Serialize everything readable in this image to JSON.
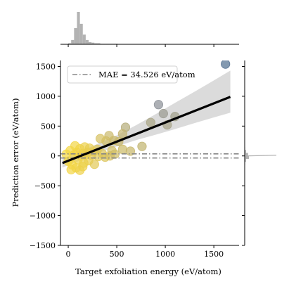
{
  "chart_data": {
    "type": "scatter",
    "title": "",
    "xlabel": "Target exfoliation energy (eV/atom)",
    "ylabel": "Prediction error (eV/atom)",
    "xlim": [
      -80,
      1760
    ],
    "ylim": [
      -1500,
      1600
    ],
    "x_ticks": [
      0,
      500,
      1000,
      1500
    ],
    "y_ticks": [
      -1500,
      -1000,
      -500,
      0,
      500,
      1000,
      1500
    ],
    "x_tick_labels": [
      "0",
      "500",
      "1000",
      "1500"
    ],
    "y_tick_labels": [
      "−1500",
      "−1000",
      "−500",
      "0",
      "500",
      "1000",
      "1500"
    ],
    "legend": {
      "label": "MAE = 34.526 eV/atom",
      "placement": "top-left"
    },
    "mae": 34.526,
    "regression": {
      "x": [
        -60,
        1670
      ],
      "y": [
        -120,
        990
      ],
      "ci_x": [
        -60,
        100,
        300,
        500,
        700,
        900,
        1100,
        1300,
        1500,
        1670
      ],
      "ci_upper": [
        -45,
        60,
        200,
        345,
        515,
        700,
        890,
        1075,
        1265,
        1430
      ],
      "ci_lower": [
        -195,
        -90,
        45,
        160,
        265,
        355,
        450,
        550,
        645,
        725
      ]
    },
    "points": [
      {
        "x": 1620,
        "y": 1540,
        "color": "#4f6d8e"
      },
      {
        "x": 930,
        "y": 860,
        "color": "#8a8e96"
      },
      {
        "x": 980,
        "y": 710,
        "color": "#9a9a90"
      },
      {
        "x": 1100,
        "y": 660,
        "color": "#a1a08a"
      },
      {
        "x": 1020,
        "y": 520,
        "color": "#a6a386"
      },
      {
        "x": 850,
        "y": 560,
        "color": "#aaa585"
      },
      {
        "x": 590,
        "y": 480,
        "color": "#b4ab78"
      },
      {
        "x": 420,
        "y": 340,
        "color": "#cbb96b"
      },
      {
        "x": 560,
        "y": 370,
        "color": "#c3b46f"
      },
      {
        "x": 390,
        "y": 250,
        "color": "#d0bd65"
      },
      {
        "x": 470,
        "y": 260,
        "color": "#ccbb68"
      },
      {
        "x": 520,
        "y": 240,
        "color": "#c7b76b"
      },
      {
        "x": 330,
        "y": 290,
        "color": "#d6c15f"
      },
      {
        "x": 300,
        "y": 110,
        "color": "#dec75a"
      },
      {
        "x": 450,
        "y": 90,
        "color": "#d2bf62"
      },
      {
        "x": 560,
        "y": 110,
        "color": "#cab965"
      },
      {
        "x": 760,
        "y": 160,
        "color": "#c1b36d"
      },
      {
        "x": 640,
        "y": 80,
        "color": "#c7b66a"
      },
      {
        "x": 130,
        "y": 0,
        "color": "#eed24a"
      },
      {
        "x": 150,
        "y": 40,
        "color": "#ecd04c"
      },
      {
        "x": 180,
        "y": 20,
        "color": "#ebcf4d"
      },
      {
        "x": 200,
        "y": 60,
        "color": "#e9ce4f"
      },
      {
        "x": 240,
        "y": 10,
        "color": "#e6cb52"
      },
      {
        "x": 260,
        "y": 70,
        "color": "#e4ca54"
      },
      {
        "x": 310,
        "y": -10,
        "color": "#e0c856"
      },
      {
        "x": 350,
        "y": 40,
        "color": "#ddc658"
      },
      {
        "x": 380,
        "y": -20,
        "color": "#dbc45a"
      },
      {
        "x": 100,
        "y": -60,
        "color": "#f0d347"
      },
      {
        "x": 90,
        "y": 60,
        "color": "#f1d446"
      },
      {
        "x": 60,
        "y": 20,
        "color": "#f2d545"
      },
      {
        "x": 120,
        "y": 120,
        "color": "#efd249"
      },
      {
        "x": 170,
        "y": 150,
        "color": "#ecd04c"
      },
      {
        "x": 220,
        "y": 130,
        "color": "#e8cd50"
      },
      {
        "x": 160,
        "y": -120,
        "color": "#edd14b"
      },
      {
        "x": 210,
        "y": -80,
        "color": "#e9ce4f"
      },
      {
        "x": 40,
        "y": -150,
        "color": "#f3d644"
      },
      {
        "x": 30,
        "y": -230,
        "color": "#f3d644"
      },
      {
        "x": 80,
        "y": -200,
        "color": "#f1d446"
      },
      {
        "x": 120,
        "y": -240,
        "color": "#efd249"
      },
      {
        "x": 150,
        "y": -180,
        "color": "#edd14b"
      },
      {
        "x": 0,
        "y": -90,
        "color": "#f4d742"
      },
      {
        "x": -20,
        "y": 30,
        "color": "#f5d841"
      },
      {
        "x": 20,
        "y": 90,
        "color": "#f4d743"
      },
      {
        "x": 270,
        "y": -140,
        "color": "#e3c955"
      },
      {
        "x": 70,
        "y": 170,
        "color": "#f2d545"
      },
      {
        "x": 430,
        "y": 0,
        "color": "#d5bf60"
      },
      {
        "x": 480,
        "y": 30,
        "color": "#d0bd64"
      }
    ],
    "top_histogram": {
      "bin_edges": [
        0,
        30,
        60,
        90,
        120,
        150,
        180,
        210,
        240,
        270,
        300,
        330,
        360,
        390,
        420,
        450,
        480,
        510
      ],
      "counts": [
        2,
        8,
        30,
        60,
        38,
        18,
        8,
        4,
        3,
        2,
        2,
        1,
        1,
        1,
        1,
        1,
        1
      ]
    },
    "right_histogram": {
      "bin_edges": [
        -150,
        -100,
        -50,
        0,
        50,
        100,
        150
      ],
      "counts": [
        1,
        3,
        10,
        8,
        3,
        1
      ]
    }
  }
}
